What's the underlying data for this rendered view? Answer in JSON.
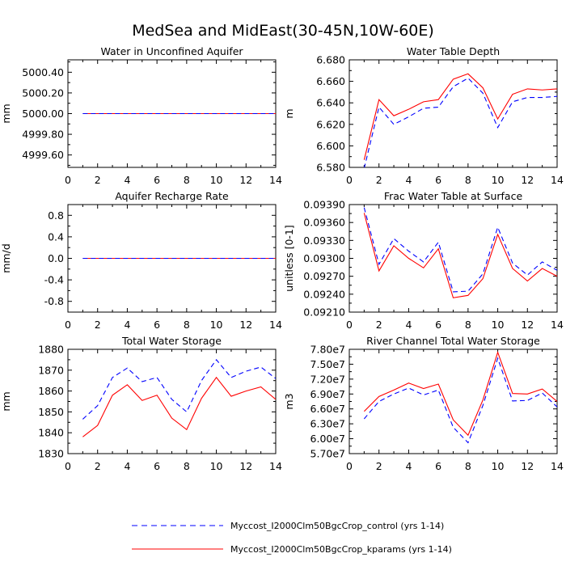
{
  "title": "MedSea and MidEast(30-45N,10W-60E)",
  "legend": {
    "control": "Myccost_I2000Clm50BgcCrop_control (yrs 1-14)",
    "kparams": "Myccost_I2000Clm50BgcCrop_kparams (yrs 1-14)"
  },
  "colors": {
    "control": "#0000ff",
    "kparams": "#ff0000"
  },
  "chart_data": [
    {
      "type": "line",
      "title": "Water in Unconfined Aquifer",
      "ylabel": "mm",
      "x": [
        1,
        2,
        3,
        4,
        5,
        6,
        7,
        8,
        9,
        10,
        11,
        12,
        13,
        14
      ],
      "xlim": [
        0,
        14
      ],
      "ylim": [
        4999.48,
        5000.52
      ],
      "xticks": [
        "0",
        "2",
        "4",
        "6",
        "8",
        "10",
        "12",
        "14"
      ],
      "yticks": [
        {
          "v": 4999.6,
          "label": "4999.60"
        },
        {
          "v": 4999.8,
          "label": "4999.80"
        },
        {
          "v": 5000.0,
          "label": "5000.00"
        },
        {
          "v": 5000.2,
          "label": "5000.20"
        },
        {
          "v": 5000.4,
          "label": "5000.40"
        }
      ],
      "series": [
        {
          "name": "control",
          "values": [
            5000,
            5000,
            5000,
            5000,
            5000,
            5000,
            5000,
            5000,
            5000,
            5000,
            5000,
            5000,
            5000,
            5000
          ]
        },
        {
          "name": "kparams",
          "values": [
            5000,
            5000,
            5000,
            5000,
            5000,
            5000,
            5000,
            5000,
            5000,
            5000,
            5000,
            5000,
            5000,
            5000
          ]
        }
      ]
    },
    {
      "type": "line",
      "title": "Water Table Depth",
      "ylabel": "m",
      "x": [
        1,
        2,
        3,
        4,
        5,
        6,
        7,
        8,
        9,
        10,
        11,
        12,
        13,
        14
      ],
      "xlim": [
        0,
        14
      ],
      "ylim": [
        6.58,
        6.68
      ],
      "xticks": [
        "0",
        "2",
        "4",
        "6",
        "8",
        "10",
        "12",
        "14"
      ],
      "yticks": [
        {
          "v": 6.58,
          "label": "6.580"
        },
        {
          "v": 6.6,
          "label": "6.600"
        },
        {
          "v": 6.62,
          "label": "6.620"
        },
        {
          "v": 6.64,
          "label": "6.640"
        },
        {
          "v": 6.66,
          "label": "6.660"
        },
        {
          "v": 6.68,
          "label": "6.680"
        }
      ],
      "series": [
        {
          "name": "control",
          "values": [
            6.579,
            6.636,
            6.62,
            6.627,
            6.635,
            6.636,
            6.655,
            6.663,
            6.649,
            6.617,
            6.641,
            6.645,
            6.645,
            6.646
          ]
        },
        {
          "name": "kparams",
          "values": [
            6.587,
            6.643,
            6.628,
            6.634,
            6.641,
            6.643,
            6.662,
            6.667,
            6.654,
            6.625,
            6.648,
            6.653,
            6.652,
            6.653
          ]
        }
      ]
    },
    {
      "type": "line",
      "title": "Aquifer Recharge Rate",
      "ylabel": "mm/d",
      "x": [
        1,
        2,
        3,
        4,
        5,
        6,
        7,
        8,
        9,
        10,
        11,
        12,
        13,
        14
      ],
      "xlim": [
        0,
        14
      ],
      "ylim": [
        -1,
        1
      ],
      "xticks": [
        "0",
        "2",
        "4",
        "6",
        "8",
        "10",
        "12",
        "14"
      ],
      "yticks": [
        {
          "v": -0.8,
          "label": "-0.8"
        },
        {
          "v": -0.4,
          "label": "-0.4"
        },
        {
          "v": 0.0,
          "label": "0.0"
        },
        {
          "v": 0.4,
          "label": "0.4"
        },
        {
          "v": 0.8,
          "label": "0.8"
        }
      ],
      "series": [
        {
          "name": "control",
          "values": [
            0,
            0,
            0,
            0,
            0,
            0,
            0,
            0,
            0,
            0,
            0,
            0,
            0,
            0
          ]
        },
        {
          "name": "kparams",
          "values": [
            0,
            0,
            0,
            0,
            0,
            0,
            0,
            0,
            0,
            0,
            0,
            0,
            0,
            0
          ]
        }
      ]
    },
    {
      "type": "line",
      "title": "Frac Water Table at Surface",
      "ylabel": "unitless [0-1]",
      "x": [
        1,
        2,
        3,
        4,
        5,
        6,
        7,
        8,
        9,
        10,
        11,
        12,
        13,
        14
      ],
      "xlim": [
        0,
        14
      ],
      "ylim": [
        0.0921,
        0.0939
      ],
      "xticks": [
        "0",
        "2",
        "4",
        "6",
        "8",
        "10",
        "12",
        "14"
      ],
      "yticks": [
        {
          "v": 0.0921,
          "label": "0.09210"
        },
        {
          "v": 0.0924,
          "label": "0.09240"
        },
        {
          "v": 0.0927,
          "label": "0.09270"
        },
        {
          "v": 0.093,
          "label": "0.09300"
        },
        {
          "v": 0.0933,
          "label": "0.09330"
        },
        {
          "v": 0.0936,
          "label": "0.09360"
        },
        {
          "v": 0.0939,
          "label": "0.09390"
        }
      ],
      "series": [
        {
          "name": "control",
          "values": [
            0.09385,
            0.0929,
            0.09333,
            0.09312,
            0.09294,
            0.09327,
            0.09244,
            0.09245,
            0.09274,
            0.09352,
            0.09292,
            0.09272,
            0.09294,
            0.0928
          ]
        },
        {
          "name": "kparams",
          "values": [
            0.09376,
            0.09279,
            0.09321,
            0.093,
            0.09284,
            0.09316,
            0.09234,
            0.09238,
            0.09266,
            0.0934,
            0.09283,
            0.09262,
            0.09283,
            0.0927
          ]
        }
      ]
    },
    {
      "type": "line",
      "title": "Total Water Storage",
      "ylabel": "mm",
      "x": [
        1,
        2,
        3,
        4,
        5,
        6,
        7,
        8,
        9,
        10,
        11,
        12,
        13,
        14
      ],
      "xlim": [
        0,
        14
      ],
      "ylim": [
        1830,
        1880
      ],
      "xticks": [
        "0",
        "2",
        "4",
        "6",
        "8",
        "10",
        "12",
        "14"
      ],
      "yticks": [
        {
          "v": 1830,
          "label": "1830"
        },
        {
          "v": 1840,
          "label": "1840"
        },
        {
          "v": 1850,
          "label": "1850"
        },
        {
          "v": 1860,
          "label": "1860"
        },
        {
          "v": 1870,
          "label": "1870"
        },
        {
          "v": 1880,
          "label": "1880"
        }
      ],
      "series": [
        {
          "name": "control",
          "values": [
            1846.5,
            1853,
            1866.5,
            1871,
            1864.5,
            1866.5,
            1856,
            1850,
            1865,
            1875,
            1866.5,
            1869.5,
            1871.5,
            1866
          ]
        },
        {
          "name": "kparams",
          "values": [
            1838,
            1843.5,
            1858,
            1863,
            1855.5,
            1858,
            1847,
            1841.5,
            1856.5,
            1866.5,
            1857.5,
            1860,
            1862,
            1856
          ]
        }
      ]
    },
    {
      "type": "line",
      "title": "River Channel Total Water Storage",
      "ylabel": "m3",
      "x": [
        1,
        2,
        3,
        4,
        5,
        6,
        7,
        8,
        9,
        10,
        11,
        12,
        13,
        14
      ],
      "xlim": [
        0,
        14
      ],
      "ylim": [
        57000000,
        78000000
      ],
      "xticks": [
        "0",
        "2",
        "4",
        "6",
        "8",
        "10",
        "12",
        "14"
      ],
      "yticks": [
        {
          "v": 57000000,
          "label": "5.70e7"
        },
        {
          "v": 60000000,
          "label": "6.00e7"
        },
        {
          "v": 63000000,
          "label": "6.30e7"
        },
        {
          "v": 66000000,
          "label": "6.60e7"
        },
        {
          "v": 69000000,
          "label": "6.90e7"
        },
        {
          "v": 72000000,
          "label": "7.20e7"
        },
        {
          "v": 75000000,
          "label": "7.50e7"
        },
        {
          "v": 78000000,
          "label": "7.80e7"
        }
      ],
      "series": [
        {
          "name": "control",
          "values": [
            64000000,
            67500000,
            69000000,
            70200000,
            68800000,
            69800000,
            62300000,
            59200000,
            66700000,
            76200000,
            67600000,
            67700000,
            69200000,
            66400000
          ]
        },
        {
          "name": "kparams",
          "values": [
            65500000,
            68500000,
            69800000,
            71200000,
            70100000,
            71000000,
            63800000,
            60700000,
            67800000,
            77400000,
            69100000,
            69000000,
            70000000,
            67500000
          ]
        }
      ]
    }
  ]
}
